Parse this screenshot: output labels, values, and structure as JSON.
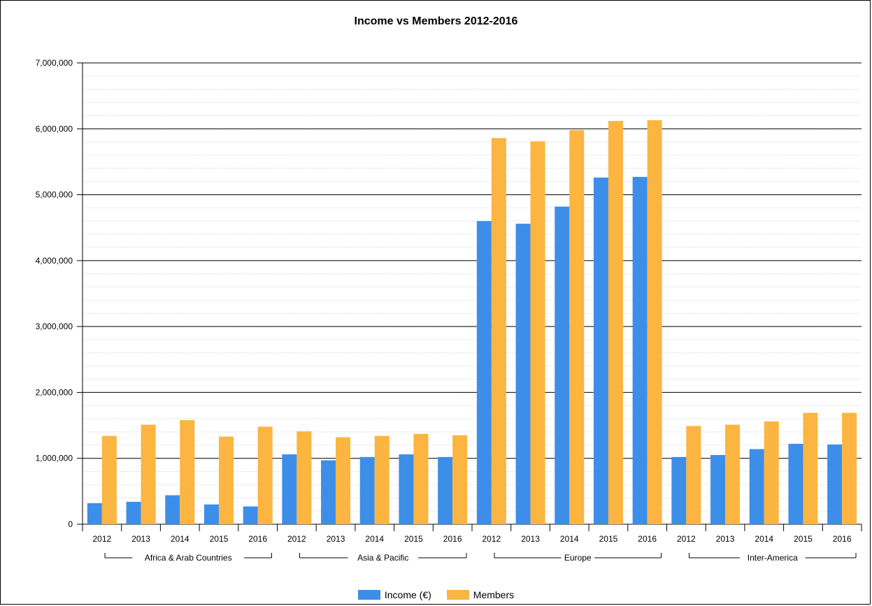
{
  "chart_data": {
    "type": "bar",
    "title": "Income vs Members 2012-2016",
    "xlabel": "",
    "ylabel": "",
    "ylim": [
      0,
      7000000
    ],
    "yticks": [
      "0",
      "1,000,000",
      "2,000,000",
      "3,000,000",
      "4,000,000",
      "5,000,000",
      "6,000,000",
      "7,000,000"
    ],
    "grid": true,
    "legend_position": "bottom",
    "groups": [
      {
        "name": "Africa & Arab Countries",
        "categories": [
          "2012",
          "2013",
          "2014",
          "2015",
          "2016"
        ]
      },
      {
        "name": "Asia & Pacific",
        "categories": [
          "2012",
          "2013",
          "2014",
          "2015",
          "2016"
        ]
      },
      {
        "name": "Europe",
        "categories": [
          "2012",
          "2013",
          "2014",
          "2015",
          "2016"
        ]
      },
      {
        "name": "Inter-America",
        "categories": [
          "2012",
          "2013",
          "2014",
          "2015",
          "2016"
        ]
      }
    ],
    "categories": [
      "2012",
      "2013",
      "2014",
      "2015",
      "2016",
      "2012",
      "2013",
      "2014",
      "2015",
      "2016",
      "2012",
      "2013",
      "2014",
      "2015",
      "2016",
      "2012",
      "2013",
      "2014",
      "2015",
      "2016"
    ],
    "series": [
      {
        "name": "Income (€)",
        "color": "#3d8ee8",
        "values": [
          320000,
          340000,
          440000,
          300000,
          270000,
          1060000,
          970000,
          1020000,
          1060000,
          1020000,
          4600000,
          4560000,
          4820000,
          5260000,
          5270000,
          1020000,
          1050000,
          1140000,
          1220000,
          1210000
        ]
      },
      {
        "name": "Members",
        "color": "#fbb540",
        "values": [
          1340000,
          1510000,
          1580000,
          1330000,
          1480000,
          1410000,
          1320000,
          1340000,
          1370000,
          1350000,
          5860000,
          5810000,
          5980000,
          6120000,
          6130000,
          1490000,
          1510000,
          1560000,
          1690000,
          1690000
        ]
      }
    ]
  }
}
